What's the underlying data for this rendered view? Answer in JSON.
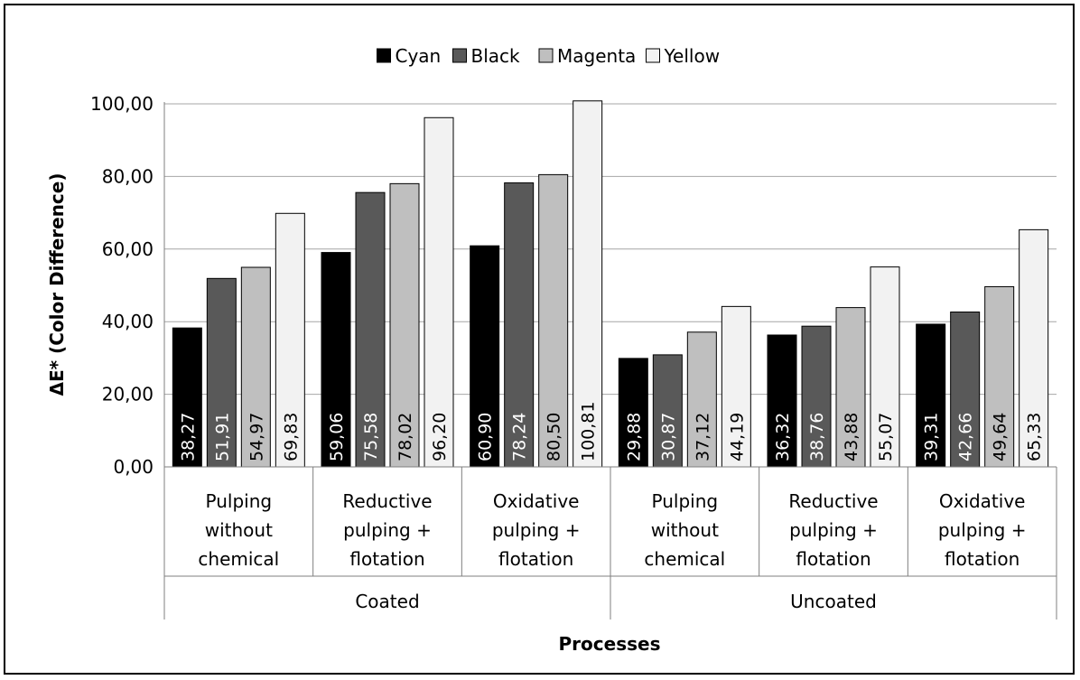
{
  "chart_data": {
    "type": "bar",
    "xlabel": "Processes",
    "ylabel": "ΔE* (Color Difference)",
    "ylim": [
      0,
      100
    ],
    "yticks": [
      "0,00",
      "20,00",
      "40,00",
      "60,00",
      "80,00",
      "100,00"
    ],
    "grid": true,
    "legend_position": "top",
    "groups": [
      {
        "label": "Coated",
        "categories": [
          "Pulping\nwithout\nchemical",
          "Reductive\npulping +\nflotation",
          "Oxidative\npulping +\nflotation"
        ]
      },
      {
        "label": "Uncoated",
        "categories": [
          "Pulping\nwithout\nchemical",
          "Reductive\npulping +\nflotation",
          "Oxidative\npulping +\nflotation"
        ]
      }
    ],
    "series": [
      {
        "name": "Cyan",
        "color": "#000000",
        "label_color": "#ffffff",
        "values": [
          38.27,
          59.06,
          60.9,
          29.88,
          36.32,
          39.31
        ],
        "labels": [
          "38,27",
          "59,06",
          "60,90",
          "29,88",
          "36,32",
          "39,31"
        ]
      },
      {
        "name": "Black",
        "color": "#595959",
        "label_color": "#ffffff",
        "values": [
          51.91,
          75.58,
          78.24,
          30.87,
          38.76,
          42.66
        ],
        "labels": [
          "51,91",
          "75,58",
          "78,24",
          "30,87",
          "38,76",
          "42,66"
        ]
      },
      {
        "name": "Magenta",
        "color": "#bfbfbf",
        "label_color": "#000000",
        "values": [
          54.97,
          78.02,
          80.5,
          37.12,
          43.88,
          49.64
        ],
        "labels": [
          "54,97",
          "78,02",
          "80,50",
          "37,12",
          "43,88",
          "49,64"
        ]
      },
      {
        "name": "Yellow",
        "color": "#f2f2f2",
        "label_color": "#000000",
        "values": [
          69.83,
          96.2,
          100.81,
          44.19,
          55.07,
          65.33
        ],
        "labels": [
          "69,83",
          "96,20",
          "100,81",
          "44,19",
          "55,07",
          "65,33"
        ]
      }
    ]
  }
}
